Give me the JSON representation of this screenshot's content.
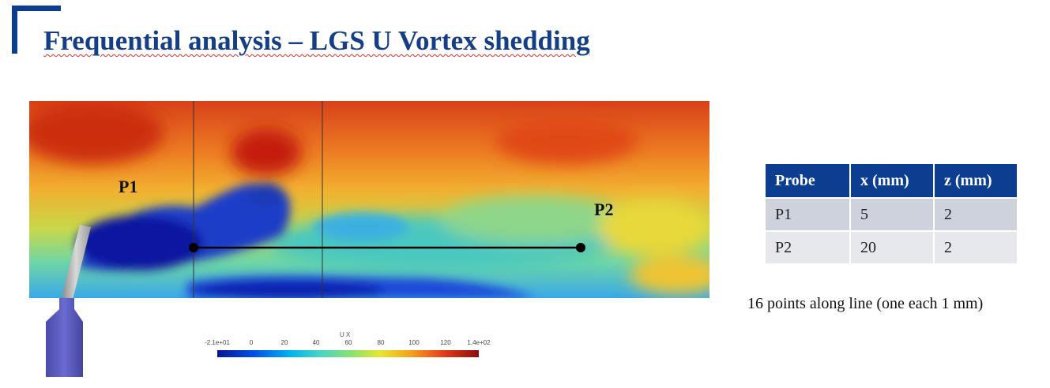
{
  "slide": {
    "title": "Frequential analysis – LGS U Vortex shedding",
    "title_color": "#143f86",
    "accent_color": "#0b3d91"
  },
  "field": {
    "probes": {
      "p1_label": "P1",
      "p2_label": "P2"
    },
    "colorbar": {
      "title": "U X",
      "ticks": [
        "-2.1e+01",
        "0",
        "20",
        "40",
        "60",
        "80",
        "100",
        "120",
        "1.4e+02"
      ],
      "colormap": "jet"
    }
  },
  "table": {
    "headers": [
      "Probe",
      "x (mm)",
      "z (mm)"
    ],
    "rows": [
      [
        "P1",
        "5",
        "2"
      ],
      [
        "P2",
        "20",
        "2"
      ]
    ],
    "header_color": "#0b3d91"
  },
  "note": "16 points along line (one each 1 mm)"
}
